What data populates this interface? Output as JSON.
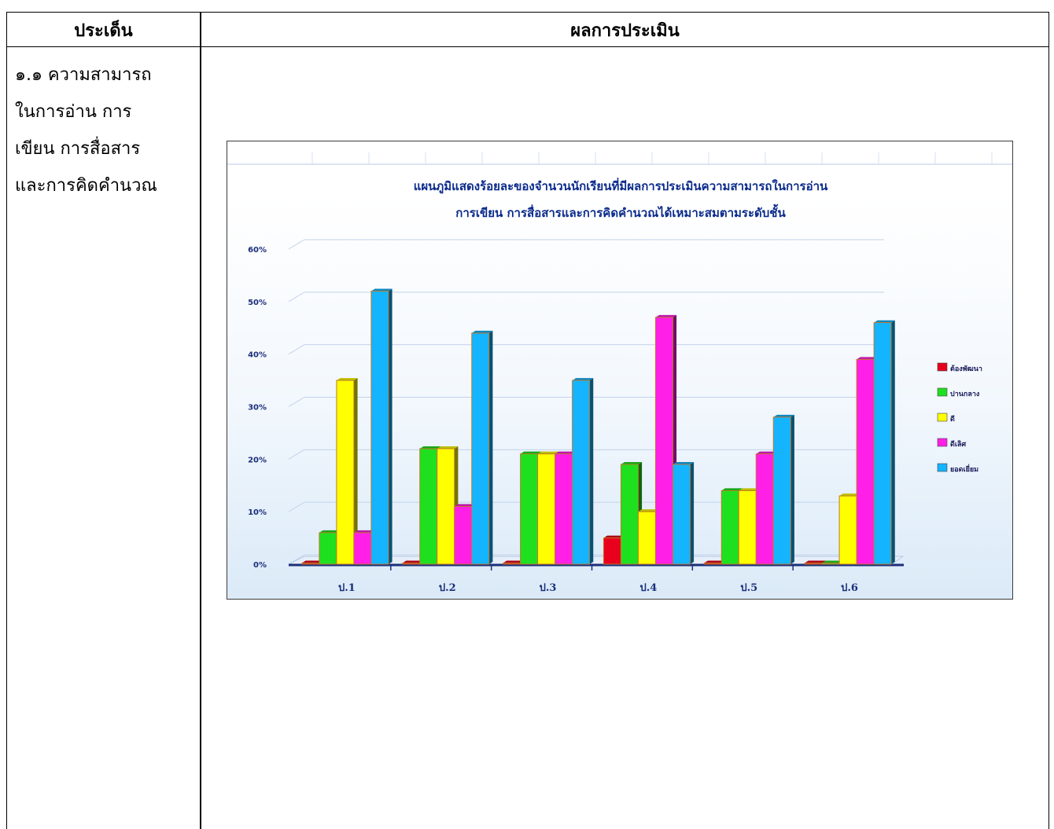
{
  "table": {
    "header_left": "ประเด็น",
    "header_right": "ผลการประเมิน"
  },
  "issue": {
    "lines": [
      "๑.๑ ความสามารถ",
      "ในการอ่าน การ",
      "เขียน การสื่อสาร",
      "และการคิดคำนวณ"
    ]
  },
  "colors": {
    "series": [
      "#e8001c",
      "#1fe01f",
      "#ffff00",
      "#ff1fe6",
      "#14b4ff"
    ],
    "title": "#0a2a8c",
    "axis": "#1b2f7a",
    "grid": "#c3d3ea"
  },
  "chart_data": {
    "type": "bar",
    "title_lines": [
      "แผนภูมิแสดงร้อยละของจำนวนนักเรียนที่มีผลการประเมินความสามารถในการอ่าน",
      "การเขียน การสื่อสารและการคิดคำนวณได้เหมาะสมตามระดับชั้น"
    ],
    "xlabel": "",
    "ylabel": "",
    "categories": [
      "ป.1",
      "ป.2",
      "ป.3",
      "ป.4",
      "ป.5",
      "ป.6"
    ],
    "ylim": [
      0,
      60
    ],
    "y_ticks": [
      "0%",
      "10%",
      "20%",
      "30%",
      "40%",
      "50%",
      "60%"
    ],
    "series": [
      {
        "name": "ต้องพัฒนา",
        "values": [
          0,
          0,
          0,
          5,
          0,
          0
        ]
      },
      {
        "name": "ปานกลาง",
        "values": [
          6,
          22,
          21,
          19,
          14,
          0
        ]
      },
      {
        "name": "ดี",
        "values": [
          35,
          22,
          21,
          10,
          14,
          13
        ]
      },
      {
        "name": "ดีเลิศ",
        "values": [
          6,
          11,
          21,
          47,
          21,
          39
        ]
      },
      {
        "name": "ยอดเยี่ยม",
        "values": [
          52,
          44,
          35,
          19,
          28,
          46
        ]
      }
    ],
    "grid": true,
    "legend_position": "right"
  }
}
